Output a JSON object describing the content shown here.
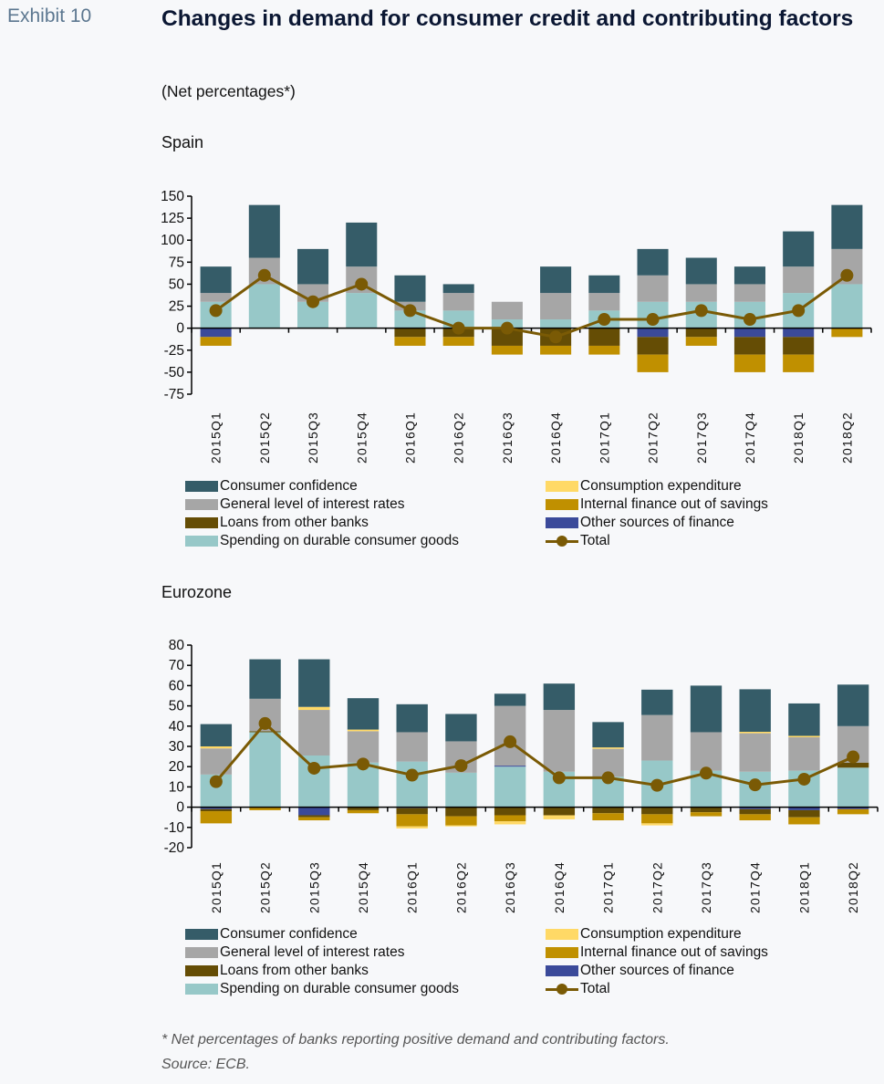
{
  "header": {
    "exhibit": "Exhibit 10",
    "title": "Changes in demand for consumer credit and contributing factors",
    "subtitle": "(Net percentages*)"
  },
  "series_colors": {
    "confidence": "#355c68",
    "interest": "#a6a6a6",
    "loans": "#654d05",
    "durable": "#97c8c8",
    "consumption": "#ffd966",
    "internal": "#c09000",
    "other": "#3b4a9a",
    "total": "#7a5a05"
  },
  "legend": {
    "confidence": "Consumer confidence",
    "interest": "General level of interest rates",
    "loans": "Loans from other banks",
    "durable": "Spending on durable consumer goods",
    "consumption": "Consumption expenditure",
    "internal": "Internal finance out of savings",
    "other": "Other sources of finance",
    "total": "Total"
  },
  "chart_data": [
    {
      "type": "bar",
      "stacked": true,
      "title": "Spain",
      "xlabel": "",
      "ylabel": "",
      "ylim": [
        -75,
        150
      ],
      "yticks": [
        150,
        125,
        100,
        75,
        50,
        25,
        0,
        -25,
        -50,
        -75
      ],
      "categories": [
        "2015Q1",
        "2015Q2",
        "2015Q3",
        "2015Q4",
        "2016Q1",
        "2016Q2",
        "2016Q3",
        "2016Q4",
        "2017Q1",
        "2017Q2",
        "2017Q3",
        "2017Q4",
        "2018Q1",
        "2018Q2"
      ],
      "series": [
        {
          "key": "durable",
          "name": "Spending on durable consumer goods",
          "values": [
            30,
            50,
            30,
            40,
            20,
            20,
            10,
            10,
            20,
            30,
            30,
            30,
            40,
            50
          ]
        },
        {
          "key": "interest",
          "name": "General level of interest rates",
          "values": [
            10,
            30,
            20,
            30,
            10,
            20,
            20,
            30,
            20,
            30,
            20,
            20,
            30,
            40
          ]
        },
        {
          "key": "consumption",
          "name": "Consumption expenditure",
          "values": [
            0,
            0,
            0,
            0,
            0,
            0,
            0,
            0,
            0,
            0,
            0,
            0,
            0,
            0
          ]
        },
        {
          "key": "confidence",
          "name": "Consumer confidence",
          "values": [
            30,
            60,
            40,
            50,
            30,
            10,
            0,
            30,
            20,
            30,
            30,
            20,
            40,
            50
          ]
        },
        {
          "key": "other",
          "name": "Other sources of finance",
          "values": [
            -10,
            0,
            0,
            0,
            0,
            0,
            0,
            0,
            0,
            -10,
            0,
            -10,
            -10,
            0
          ]
        },
        {
          "key": "loans",
          "name": "Loans from other banks",
          "values": [
            0,
            0,
            0,
            0,
            -10,
            -10,
            -20,
            -20,
            -20,
            -20,
            -10,
            -20,
            -20,
            0
          ]
        },
        {
          "key": "internal",
          "name": "Internal finance out of savings",
          "values": [
            -10,
            0,
            0,
            0,
            -10,
            -10,
            -10,
            -10,
            -10,
            -20,
            -10,
            -20,
            -20,
            -10
          ]
        }
      ],
      "line": {
        "key": "total",
        "name": "Total",
        "values": [
          20,
          60,
          30,
          50,
          20,
          0,
          0,
          -10,
          10,
          10,
          20,
          10,
          20,
          60
        ]
      }
    },
    {
      "type": "bar",
      "stacked": true,
      "title": "Eurozone",
      "xlabel": "",
      "ylabel": "",
      "ylim": [
        -20,
        80
      ],
      "yticks": [
        80,
        70,
        60,
        50,
        40,
        30,
        20,
        10,
        0,
        -10,
        -20
      ],
      "categories": [
        "2015Q1",
        "2015Q2",
        "2015Q3",
        "2015Q4",
        "2016Q1",
        "2016Q2",
        "2016Q3",
        "2016Q4",
        "2017Q1",
        "2017Q2",
        "2017Q3",
        "2017Q4",
        "2018Q1",
        "2018Q2"
      ],
      "series": [
        {
          "key": "durable",
          "name": "Spending on durable consumer goods",
          "values": [
            16.1,
            37.0,
            25.5,
            22.0,
            22.5,
            17.0,
            20.0,
            17.5,
            15.0,
            23.0,
            18.0,
            17.5,
            18.0,
            19.5
          ]
        },
        {
          "key": "loans",
          "name": "Loans from other banks",
          "values": [
            0,
            0.5,
            0,
            0,
            0,
            0,
            0,
            0,
            0,
            0,
            0,
            0,
            0,
            2.5
          ]
        },
        {
          "key": "other",
          "name": "Other sources of finance",
          "values": [
            0,
            0,
            0,
            0,
            0,
            0,
            0.5,
            0,
            0,
            0,
            0,
            0,
            0,
            0
          ]
        },
        {
          "key": "interest",
          "name": "General level of interest rates",
          "values": [
            12.9,
            16.0,
            22.5,
            15.5,
            14.5,
            15.5,
            29.5,
            30.5,
            13.8,
            22.5,
            19.0,
            19.0,
            16.5,
            18.0
          ]
        },
        {
          "key": "consumption",
          "name": "Consumption expenditure",
          "values": [
            1.0,
            0,
            1.5,
            0.8,
            0,
            0,
            0,
            0,
            0.7,
            0,
            0,
            0.7,
            0.7,
            0
          ]
        },
        {
          "key": "confidence",
          "name": "Consumer confidence",
          "values": [
            11.0,
            19.5,
            23.5,
            15.5,
            13.8,
            13.5,
            6.0,
            13.0,
            12.5,
            12.5,
            23.0,
            21.0,
            16.0,
            20.5
          ]
        },
        {
          "key": "other_neg",
          "name": "Other sources of finance",
          "values": [
            -1.0,
            0,
            -4.0,
            0,
            -0.5,
            0,
            0,
            0,
            0,
            0,
            0,
            -1.0,
            -1.5,
            -1.0
          ]
        },
        {
          "key": "loans_neg",
          "name": "Loans from other banks",
          "values": [
            -1.0,
            0,
            -1.0,
            -1.5,
            -3.0,
            -4.5,
            -4.0,
            -4.0,
            -3.0,
            -3.5,
            -2.5,
            -2.5,
            -3.5,
            0
          ]
        },
        {
          "key": "internal",
          "name": "Internal finance out of savings",
          "values": [
            -6.0,
            -1.5,
            -1.5,
            -1.5,
            -6.0,
            -4.5,
            -3.0,
            0,
            -3.5,
            -4.5,
            -2.0,
            -3.0,
            -3.5,
            -2.5
          ]
        },
        {
          "key": "consumption_neg",
          "name": "Consumption expenditure",
          "values": [
            0,
            0,
            0,
            0,
            -1.0,
            -0.5,
            -1.5,
            -2.0,
            0,
            -1.0,
            0,
            0,
            0,
            0
          ]
        }
      ],
      "line": {
        "key": "total",
        "name": "Total",
        "values": [
          12.6,
          41.3,
          19.2,
          21.3,
          15.8,
          20.5,
          32.3,
          14.5,
          14.5,
          10.8,
          16.8,
          11.0,
          13.8,
          24.8
        ]
      }
    }
  ],
  "footnotes": {
    "note": "* Net percentages of banks reporting positive demand and contributing factors.",
    "source": "Source: ECB."
  }
}
